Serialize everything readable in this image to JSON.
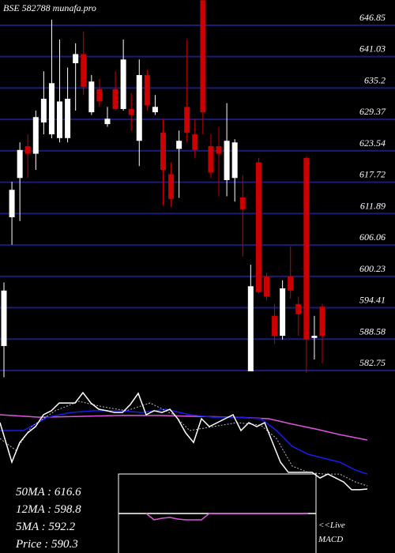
{
  "chart_data": [
    {
      "type": "candlestick",
      "title": "BSE 582788 munafa.pro",
      "up_color": "#ffffff",
      "down_color": "#cc0000",
      "grid_color": "#1c1c78",
      "ylim": [
        581.14,
        651.54
      ],
      "yticks": [
        646.85,
        641.03,
        635.2,
        629.37,
        623.54,
        617.72,
        611.89,
        606.06,
        600.23,
        594.41,
        588.58,
        582.75
      ],
      "grid": true,
      "open": [
        587.3,
        611.2,
        618.5,
        624.4,
        623.0,
        628.8,
        626.6,
        625.9,
        625.9,
        639.8,
        641.5,
        630.7,
        635.0,
        628.5,
        635.0,
        631.3,
        631.3,
        625.4,
        637.6,
        630.7,
        626.9,
        619.2,
        623.9,
        631.7,
        626.6,
        651.5,
        624.4,
        624.4,
        618.1,
        618.5,
        614.9,
        582.6,
        621.4,
        600.2,
        592.9,
        589.2,
        600.2,
        595.1,
        622.2,
        588.8,
        594.6
      ],
      "high": [
        599.1,
        617.8,
        625.1,
        626.6,
        631.0,
        638.3,
        647.9,
        644.2,
        639.0,
        643.5,
        645.7,
        637.6,
        636.9,
        631.7,
        638.3,
        644.2,
        634.2,
        640.5,
        638.6,
        633.9,
        629.5,
        621.4,
        627.3,
        644.2,
        629.5,
        651.5,
        626.6,
        628.0,
        632.4,
        625.7,
        619.0,
        602.4,
        622.2,
        600.9,
        595.1,
        599.5,
        605.8,
        596.5,
        622.5,
        592.9,
        595.1
      ],
      "low": [
        581.5,
        606.1,
        610.5,
        618.5,
        620.0,
        626.6,
        625.9,
        625.1,
        625.1,
        631.0,
        633.9,
        630.2,
        631.7,
        628.0,
        631.0,
        631.0,
        627.3,
        620.7,
        631.0,
        630.2,
        613.4,
        613.1,
        614.8,
        625.1,
        622.2,
        626.6,
        618.5,
        615.1,
        615.1,
        614.1,
        603.9,
        582.6,
        597.0,
        595.8,
        587.7,
        588.5,
        596.1,
        589.2,
        582.3,
        584.8,
        584.1
      ],
      "close": [
        597.6,
        616.3,
        623.7,
        623.0,
        629.8,
        633.2,
        636.1,
        632.7,
        633.2,
        641.5,
        635.4,
        636.4,
        632.7,
        629.5,
        631.3,
        640.5,
        630.2,
        637.6,
        632.0,
        631.7,
        620.0,
        614.6,
        625.4,
        626.9,
        623.7,
        630.7,
        619.5,
        623.0,
        625.4,
        625.1,
        612.7,
        598.4,
        597.3,
        596.5,
        589.2,
        598.0,
        597.6,
        593.2,
        588.5,
        589.2,
        589.2
      ]
    },
    {
      "type": "line",
      "xlim": [
        0,
        500
      ],
      "ylim": [
        578,
        650
      ],
      "labels": [
        "50MA : 616.6",
        "12MA : 598.8",
        "5MA : 592.2",
        "Price   : 590.3"
      ],
      "series": [
        {
          "color": "#dd55dd",
          "x": [
            0,
            50,
            100,
            150,
            200,
            250,
            300,
            340,
            370,
            400,
            430,
            465
          ],
          "values": [
            629.3,
            627.7,
            628.2,
            628.8,
            628.8,
            628.2,
            627.7,
            626.7,
            623.1,
            619.9,
            616.3,
            612.7
          ]
        },
        {
          "color": "#1a1aee",
          "x": [
            0,
            30,
            60,
            90,
            120,
            150,
            180,
            210,
            240,
            270,
            300,
            330,
            350,
            370,
            390,
            410,
            430,
            450,
            465
          ],
          "values": [
            618.9,
            618.9,
            627.7,
            630.8,
            631.9,
            631.9,
            630.8,
            632.9,
            629.3,
            627.7,
            627.7,
            626.7,
            618.9,
            608.5,
            603.4,
            600.8,
            598.2,
            593.0,
            590.4
          ]
        },
        {
          "color": "#bbbbbb",
          "dash": true,
          "x": [
            0,
            20,
            40,
            70,
            100,
            130,
            160,
            190,
            220,
            240,
            270,
            300,
            330,
            350,
            370,
            390,
            410,
            430,
            450,
            465
          ],
          "values": [
            613.7,
            606.0,
            621.5,
            631.9,
            638.1,
            634.5,
            631.9,
            637.0,
            629.3,
            618.9,
            621.5,
            624.1,
            622.5,
            613.7,
            595.6,
            591.5,
            590.4,
            590.4,
            585.2,
            582.6
          ]
        },
        {
          "color": "#ffffff",
          "x": [
            0,
            15,
            25,
            35,
            45,
            55,
            65,
            75,
            85,
            95,
            105,
            115,
            125,
            135,
            145,
            155,
            165,
            175,
            185,
            195,
            205,
            215,
            225,
            235,
            245,
            255,
            265,
            275,
            285,
            295,
            305,
            315,
            325,
            335,
            345,
            355,
            365,
            375,
            385,
            395,
            405,
            415,
            425,
            435,
            445,
            455,
            465
          ],
          "values": [
            624.1,
            598.2,
            611.1,
            617.4,
            621.5,
            629.3,
            631.9,
            637.0,
            637.0,
            637.0,
            643.8,
            637.0,
            632.9,
            631.9,
            630.8,
            630.8,
            636.0,
            643.3,
            629.3,
            631.9,
            630.8,
            632.9,
            626.7,
            617.4,
            611.1,
            626.7,
            621.5,
            624.1,
            626.7,
            629.3,
            618.9,
            624.1,
            621.5,
            624.1,
            611.1,
            598.2,
            591.5,
            591.5,
            591.5,
            591.5,
            587.8,
            590.4,
            587.8,
            585.2,
            580.1,
            580.1,
            580.6
          ]
        }
      ]
    },
    {
      "type": "macd",
      "title": "MACD",
      "subtitle": "<<Live",
      "xlim": [
        0,
        500
      ],
      "ylim": [
        -10,
        10
      ],
      "series": [
        {
          "color": "#dd55dd",
          "x": [
            185,
            195,
            205,
            215,
            225,
            235,
            245,
            255,
            265,
            300,
            390
          ],
          "values": [
            0,
            -1.6,
            -1.2,
            -1,
            -1.4,
            -1.6,
            -1.6,
            -1.6,
            0,
            0,
            0
          ]
        }
      ]
    }
  ]
}
